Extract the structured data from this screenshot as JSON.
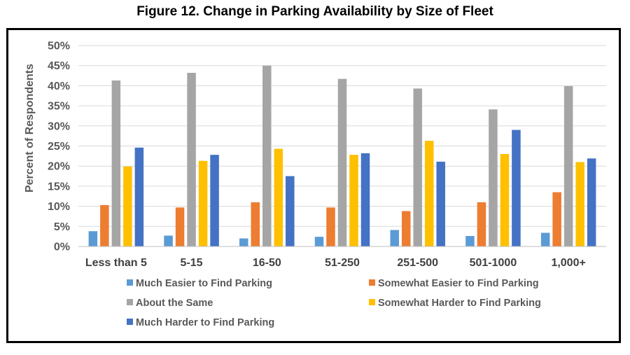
{
  "title": "Figure 12.  Change in Parking Availability by Size of Fleet",
  "chart_data": {
    "type": "bar",
    "title": "Figure 12.  Change in Parking Availability by Size of Fleet",
    "xlabel": "",
    "ylabel": "Percent of Respondents",
    "ylim": [
      0,
      50
    ],
    "yticks": [
      "0%",
      "5%",
      "10%",
      "15%",
      "20%",
      "25%",
      "30%",
      "35%",
      "40%",
      "45%",
      "50%"
    ],
    "grid": true,
    "legend_position": "bottom",
    "categories": [
      "Less than 5",
      "5-15",
      "16-50",
      "51-250",
      "251-500",
      "501-1000",
      "1,000+"
    ],
    "series": [
      {
        "name": "Much Easier to Find Parking",
        "color": "#5B9BD5",
        "values": [
          3.8,
          2.7,
          2.0,
          2.4,
          4.1,
          2.6,
          3.4
        ]
      },
      {
        "name": "Somewhat Easier to Find Parking",
        "color": "#ED7D31",
        "values": [
          10.3,
          9.7,
          11.0,
          9.7,
          8.8,
          11.0,
          13.5
        ]
      },
      {
        "name": "About the Same",
        "color": "#A5A5A5",
        "values": [
          41.3,
          43.2,
          45.0,
          41.7,
          39.3,
          34.1,
          39.9
        ]
      },
      {
        "name": "Somewhat Harder to Find Parking",
        "color": "#FFC000",
        "values": [
          19.9,
          21.3,
          24.3,
          22.8,
          26.3,
          23.0,
          21.0
        ]
      },
      {
        "name": "Much Harder to Find Parking",
        "color": "#4472C4",
        "values": [
          24.6,
          22.8,
          17.5,
          23.2,
          21.1,
          29.0,
          21.9
        ]
      }
    ]
  }
}
